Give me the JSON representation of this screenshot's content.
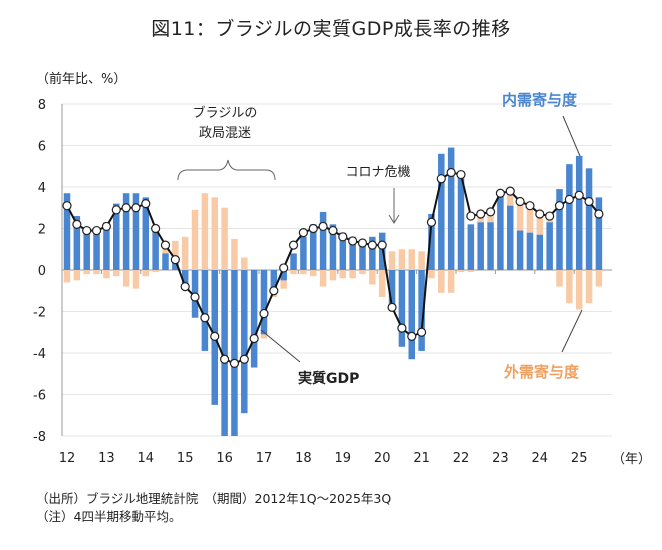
{
  "title": "図11：ブラジルの実質GDP成長率の推移",
  "unit_label": "（前年比、%）",
  "year_unit_label": "（年）",
  "notes": [
    "（出所）ブラジル地理統計院　（期間）2012年1Q～2025年3Q",
    "（注）4四半期移動平均。"
  ],
  "annotations": {
    "political_turmoil_line1": "ブラジルの",
    "political_turmoil_line2": "政局混迷",
    "covid": "コロナ危機",
    "real_gdp": "実質GDP",
    "domestic": "内需寄与度",
    "external": "外需寄与度"
  },
  "colors": {
    "domestic": "#4a86d0",
    "external": "#f8cba6",
    "line": "#111111",
    "grid": "#e6e6e6"
  },
  "chart_data": {
    "type": "bar",
    "title": "図11：ブラジルの実質GDP成長率の推移",
    "ylabel": "（前年比、%）",
    "xlabel": "（年）",
    "ylim": [
      -8,
      8
    ],
    "yticks": [
      8,
      6,
      4,
      2,
      0,
      -2,
      -4,
      -6,
      -8
    ],
    "grid": true,
    "x_tick_labels": [
      "12",
      "13",
      "14",
      "15",
      "16",
      "17",
      "18",
      "19",
      "20",
      "21",
      "22",
      "23",
      "24",
      "25"
    ],
    "period": "2012Q1-2025Q3",
    "categories": [
      "2012Q1",
      "2012Q2",
      "2012Q3",
      "2012Q4",
      "2013Q1",
      "2013Q2",
      "2013Q3",
      "2013Q4",
      "2014Q1",
      "2014Q2",
      "2014Q3",
      "2014Q4",
      "2015Q1",
      "2015Q2",
      "2015Q3",
      "2015Q4",
      "2016Q1",
      "2016Q2",
      "2016Q3",
      "2016Q4",
      "2017Q1",
      "2017Q2",
      "2017Q3",
      "2017Q4",
      "2018Q1",
      "2018Q2",
      "2018Q3",
      "2018Q4",
      "2019Q1",
      "2019Q2",
      "2019Q3",
      "2019Q4",
      "2020Q1",
      "2020Q2",
      "2020Q3",
      "2020Q4",
      "2021Q1",
      "2021Q2",
      "2021Q3",
      "2021Q4",
      "2022Q1",
      "2022Q2",
      "2022Q3",
      "2022Q4",
      "2023Q1",
      "2023Q2",
      "2023Q3",
      "2023Q4",
      "2024Q1",
      "2024Q2",
      "2024Q3",
      "2024Q4",
      "2025Q1",
      "2025Q2",
      "2025Q3"
    ],
    "series": [
      {
        "name": "内需寄与度",
        "type": "bar",
        "values": [
          3.7,
          2.6,
          1.8,
          1.8,
          2.3,
          3.2,
          3.7,
          3.7,
          3.5,
          2.0,
          0.8,
          0.5,
          -0.9,
          -2.3,
          -3.9,
          -6.5,
          -8.0,
          -8.0,
          -6.9,
          -4.7,
          -3.1,
          -1.0,
          -0.5,
          0.8,
          1.6,
          2.2,
          2.8,
          2.2,
          1.8,
          1.6,
          1.3,
          1.6,
          1.8,
          -1.9,
          -3.7,
          -4.3,
          -3.9,
          2.7,
          5.6,
          5.9,
          4.5,
          2.2,
          2.3,
          2.3,
          3.7,
          3.1,
          1.9,
          1.8,
          1.7,
          2.3,
          3.9,
          5.1,
          5.5,
          4.9,
          3.5
        ]
      },
      {
        "name": "外需寄与度",
        "type": "bar",
        "values": [
          -0.6,
          -0.5,
          -0.2,
          -0.2,
          -0.4,
          -0.3,
          -0.8,
          -0.9,
          -0.3,
          -0.1,
          0.3,
          0.9,
          1.6,
          2.9,
          3.7,
          3.5,
          3.0,
          1.5,
          0.6,
          0.0,
          -0.2,
          -0.3,
          -0.4,
          -0.2,
          -0.2,
          -0.3,
          -0.8,
          -0.5,
          -0.4,
          -0.4,
          -0.2,
          -0.7,
          -1.3,
          0.9,
          1.0,
          1.0,
          0.9,
          -0.4,
          -1.1,
          -1.1,
          -0.1,
          -0.1,
          0.3,
          0.4,
          0.0,
          0.8,
          1.4,
          1.2,
          1.0,
          0.3,
          -0.8,
          -1.6,
          -1.9,
          -1.6,
          -0.8
        ]
      },
      {
        "name": "実質GDP",
        "type": "line",
        "values": [
          3.1,
          2.2,
          1.9,
          1.9,
          2.1,
          2.9,
          3.0,
          3.0,
          3.2,
          2.0,
          1.2,
          0.5,
          -0.8,
          -1.3,
          -2.3,
          -3.2,
          -4.3,
          -4.5,
          -4.3,
          -3.3,
          -2.1,
          -1.0,
          0.1,
          1.2,
          1.8,
          2.0,
          2.1,
          1.9,
          1.6,
          1.4,
          1.3,
          1.2,
          1.2,
          -1.8,
          -2.8,
          -3.2,
          -3.0,
          2.3,
          4.4,
          4.7,
          4.6,
          2.6,
          2.7,
          2.8,
          3.7,
          3.8,
          3.3,
          3.1,
          2.7,
          2.6,
          3.1,
          3.4,
          3.6,
          3.3,
          2.7
        ]
      }
    ],
    "annotations": [
      "ブラジルの政局混迷",
      "コロナ危機",
      "実質GDP",
      "内需寄与度",
      "外需寄与度"
    ]
  }
}
